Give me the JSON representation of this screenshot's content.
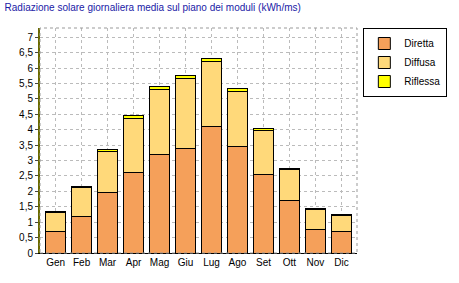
{
  "chart_data": {
    "type": "bar",
    "title": "Radiazione solare giornaliera media sul piano dei moduli (kWh/ms)",
    "categories": [
      "Gen",
      "Feb",
      "Mar",
      "Apr",
      "Mag",
      "Giu",
      "Lug",
      "Ago",
      "Set",
      "Ott",
      "Nov",
      "Dic"
    ],
    "series": [
      {
        "name": "Diretta",
        "color": "#f5a05a",
        "values": [
          0.7,
          1.2,
          1.95,
          2.6,
          3.2,
          3.4,
          4.1,
          3.45,
          2.55,
          1.7,
          0.75,
          0.7
        ]
      },
      {
        "name": "Diffusa",
        "color": "#ffd97a",
        "values": [
          0.63,
          0.92,
          1.35,
          1.78,
          2.1,
          2.25,
          2.1,
          1.8,
          1.43,
          1.0,
          0.67,
          0.53
        ]
      },
      {
        "name": "Riflessa",
        "color": "#ffff00",
        "values": [
          0.02,
          0.03,
          0.05,
          0.07,
          0.1,
          0.1,
          0.1,
          0.1,
          0.07,
          0.05,
          0.03,
          0.02
        ]
      }
    ],
    "ylim": [
      0,
      7.3
    ],
    "yticks": [
      0,
      {
        "value": 0.5,
        "label": "0,5"
      },
      1,
      {
        "value": 1.5,
        "label": "1,5"
      },
      2,
      {
        "value": 2.5,
        "label": "2,5"
      },
      3,
      {
        "value": 3.5,
        "label": "3,5"
      },
      4,
      {
        "value": 4.5,
        "label": "4,5"
      },
      5,
      {
        "value": 5.5,
        "label": "5,5"
      },
      6,
      {
        "value": 6.5,
        "label": "6,5"
      },
      7
    ],
    "stacked": true,
    "grid": true,
    "legend": "top right"
  }
}
